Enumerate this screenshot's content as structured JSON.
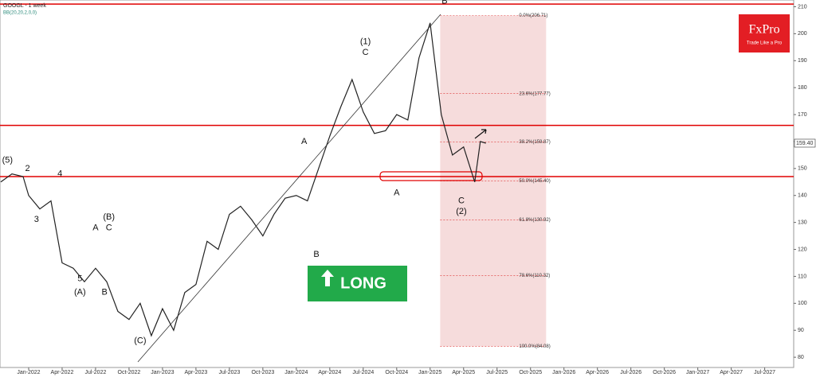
{
  "chart_data": {
    "type": "line",
    "title": "GOOGL - 1 week",
    "subtitle": "BB(20,20,2,0,0)",
    "brand": "FxPro",
    "tagline": "Trade Like a Pro",
    "signal": "LONG",
    "x": [
      -2.5,
      -1.5,
      -0.5,
      0,
      1,
      2,
      3,
      4,
      5,
      6,
      7,
      8,
      9,
      10,
      11,
      12,
      13,
      14,
      15,
      16,
      17,
      18,
      19,
      20,
      21,
      22,
      23,
      24,
      25,
      26,
      27,
      28,
      29,
      30,
      31,
      32,
      33,
      34,
      35,
      36,
      37,
      38,
      39,
      40,
      40.5,
      41
    ],
    "series": [
      {
        "name": "GOOGL",
        "color": "#222222",
        "values": [
          145,
          148,
          147,
          140,
          135,
          138,
          115,
          113,
          108,
          113,
          108,
          97,
          94,
          100,
          88,
          98,
          90,
          104,
          107,
          123,
          120,
          133,
          136,
          131,
          125,
          133,
          139,
          140,
          138,
          150,
          162,
          173,
          183,
          171,
          163,
          164,
          170,
          168,
          191,
          204,
          170,
          155,
          158,
          145,
          160,
          159.4
        ]
      }
    ],
    "last_price": {
      "value": 159.4,
      "label": "159.40"
    },
    "xlim": [
      -2.57,
      68.6
    ],
    "ylim": [
      76.2,
      212.5
    ],
    "xticks": [
      {
        "value": 0,
        "label": "Jan-2022"
      },
      {
        "value": 3,
        "label": "Apr-2022"
      },
      {
        "value": 6,
        "label": "Jul-2022"
      },
      {
        "value": 9,
        "label": "Oct-2022"
      },
      {
        "value": 12,
        "label": "Jan-2023"
      },
      {
        "value": 15,
        "label": "Apr-2023"
      },
      {
        "value": 18,
        "label": "Jul-2023"
      },
      {
        "value": 21,
        "label": "Oct-2023"
      },
      {
        "value": 24,
        "label": "Jan-2024"
      },
      {
        "value": 27,
        "label": "Apr-2024"
      },
      {
        "value": 30,
        "label": "Jul-2024"
      },
      {
        "value": 33,
        "label": "Oct-2024"
      },
      {
        "value": 36,
        "label": "Jan-2025"
      },
      {
        "value": 39,
        "label": "Apr-2025"
      },
      {
        "value": 42,
        "label": "Jul-2025"
      },
      {
        "value": 45,
        "label": "Oct-2025"
      },
      {
        "value": 48,
        "label": "Jan-2026"
      },
      {
        "value": 51,
        "label": "Apr-2026"
      },
      {
        "value": 54,
        "label": "Jul-2026"
      },
      {
        "value": 57,
        "label": "Oct-2026"
      },
      {
        "value": 60,
        "label": "Jan-2027"
      },
      {
        "value": 63,
        "label": "Apr-2027"
      },
      {
        "value": 66,
        "label": "Jul-2027"
      }
    ],
    "yticks": [
      80,
      90,
      100,
      110,
      120,
      130,
      140,
      150,
      160,
      170,
      180,
      190,
      200,
      210
    ],
    "levels": [
      211,
      166,
      147
    ],
    "level_color": "#e00000",
    "fib_zone": {
      "x": [
        36.9,
        46.4
      ],
      "color": "#f6dcdc"
    },
    "fib": [
      {
        "value": 206.71,
        "label": "0.0%(206.71)"
      },
      {
        "value": 177.77,
        "label": "23.6%(177.77)"
      },
      {
        "value": 159.87,
        "label": "38.2%(159.87)"
      },
      {
        "value": 145.4,
        "label": "50.0%(145.40)"
      },
      {
        "value": 130.92,
        "label": "61.8%(130.92)"
      },
      {
        "value": 110.32,
        "label": "78.6%(110.32)"
      },
      {
        "value": 84.08,
        "label": "100.0%(84.08)"
      }
    ],
    "annotations": [
      {
        "text": "(5)",
        "x": -1.9,
        "y": 153
      },
      {
        "text": "2",
        "x": -0.1,
        "y": 150
      },
      {
        "text": "4",
        "x": 2.8,
        "y": 148
      },
      {
        "text": "3",
        "x": 0.7,
        "y": 131
      },
      {
        "text": "5",
        "x": 4.6,
        "y": 109
      },
      {
        "text": "(A)",
        "x": 4.6,
        "y": 104
      },
      {
        "text": "A",
        "x": 6,
        "y": 128
      },
      {
        "text": "B",
        "x": 6.8,
        "y": 104
      },
      {
        "text": "(B)",
        "x": 7.2,
        "y": 132
      },
      {
        "text": "C",
        "x": 7.2,
        "y": 128
      },
      {
        "text": "(C)",
        "x": 10,
        "y": 86
      },
      {
        "text": "(1)",
        "x": 30.2,
        "y": 197
      },
      {
        "text": "C",
        "x": 30.2,
        "y": 193
      },
      {
        "text": "A",
        "x": 24.7,
        "y": 160
      },
      {
        "text": "B",
        "x": 25.8,
        "y": 118
      },
      {
        "text": "A",
        "x": 33,
        "y": 141
      },
      {
        "text": "B",
        "x": 37.3,
        "y": 212
      },
      {
        "text": "C",
        "x": 38.8,
        "y": 138
      },
      {
        "text": "(2)",
        "x": 38.8,
        "y": 134
      }
    ]
  }
}
